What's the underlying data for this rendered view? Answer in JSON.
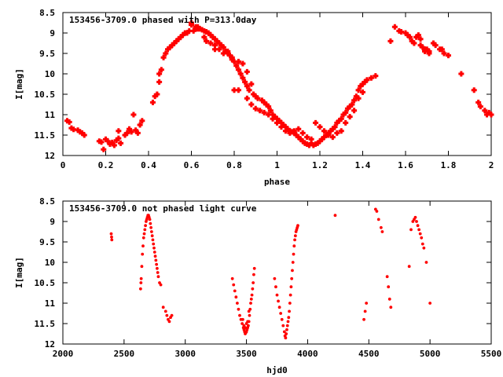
{
  "colors": {
    "points": "#ff0000",
    "axes": "#000000",
    "background": "#ffffff"
  },
  "chart_data": [
    {
      "type": "scatter",
      "title": "153456-3709.0 phased with P=313.0day",
      "xlabel": "phase",
      "ylabel": "I[mag]",
      "xlim": [
        0,
        2
      ],
      "ylim": [
        12,
        8.5
      ],
      "y_inverted": true,
      "xticks": [
        "0",
        "0.2",
        "0.4",
        "0.6",
        "0.8",
        "1",
        "1.2",
        "1.4",
        "1.6",
        "1.8",
        "2"
      ],
      "xtick_values": [
        0,
        0.2,
        0.4,
        0.6,
        0.8,
        1,
        1.2,
        1.4,
        1.6,
        1.8,
        2
      ],
      "yticks": [
        "8.5",
        "9",
        "9.5",
        "10",
        "10.5",
        "11",
        "11.5",
        "12"
      ],
      "ytick_values": [
        8.5,
        9,
        9.5,
        10,
        10.5,
        11,
        11.5,
        12
      ],
      "grid": false,
      "legend": "none",
      "marker": "filled-plus",
      "points": [
        [
          0.02,
          11.15
        ],
        [
          0.03,
          11.18
        ],
        [
          0.04,
          11.33
        ],
        [
          0.05,
          11.36
        ],
        [
          0.07,
          11.38
        ],
        [
          0.08,
          11.42
        ],
        [
          0.09,
          11.45
        ],
        [
          0.1,
          11.5
        ],
        [
          0.17,
          11.65
        ],
        [
          0.18,
          11.67
        ],
        [
          0.19,
          11.85
        ],
        [
          0.2,
          11.6
        ],
        [
          0.21,
          11.65
        ],
        [
          0.22,
          11.72
        ],
        [
          0.23,
          11.68
        ],
        [
          0.24,
          11.75
        ],
        [
          0.25,
          11.63
        ],
        [
          0.26,
          11.58
        ],
        [
          0.26,
          11.4
        ],
        [
          0.27,
          11.7
        ],
        [
          0.29,
          11.5
        ],
        [
          0.3,
          11.45
        ],
        [
          0.31,
          11.35
        ],
        [
          0.32,
          11.42
        ],
        [
          0.33,
          11.0
        ],
        [
          0.34,
          11.38
        ],
        [
          0.35,
          11.45
        ],
        [
          0.36,
          11.25
        ],
        [
          0.37,
          11.15
        ],
        [
          0.42,
          10.7
        ],
        [
          0.43,
          10.55
        ],
        [
          0.44,
          10.5
        ],
        [
          0.45,
          10.2
        ],
        [
          0.45,
          10.0
        ],
        [
          0.46,
          9.9
        ],
        [
          0.47,
          9.6
        ],
        [
          0.48,
          9.5
        ],
        [
          0.49,
          9.4
        ],
        [
          0.5,
          9.35
        ],
        [
          0.51,
          9.3
        ],
        [
          0.52,
          9.25
        ],
        [
          0.53,
          9.2
        ],
        [
          0.54,
          9.15
        ],
        [
          0.55,
          9.1
        ],
        [
          0.56,
          9.05
        ],
        [
          0.57,
          9.0
        ],
        [
          0.58,
          9.0
        ],
        [
          0.59,
          8.95
        ],
        [
          0.6,
          8.75
        ],
        [
          0.61,
          8.95
        ],
        [
          0.62,
          8.9
        ],
        [
          0.63,
          8.85
        ],
        [
          0.64,
          8.9
        ],
        [
          0.65,
          8.92
        ],
        [
          0.66,
          8.95
        ],
        [
          0.67,
          8.97
        ],
        [
          0.68,
          9.0
        ],
        [
          0.69,
          9.05
        ],
        [
          0.7,
          9.1
        ],
        [
          0.71,
          9.15
        ],
        [
          0.71,
          9.4
        ],
        [
          0.72,
          9.2
        ],
        [
          0.73,
          9.25
        ],
        [
          0.74,
          9.3
        ],
        [
          0.75,
          9.35
        ],
        [
          0.76,
          9.45
        ],
        [
          0.77,
          9.5
        ],
        [
          0.78,
          9.55
        ],
        [
          0.79,
          9.65
        ],
        [
          0.8,
          9.7
        ],
        [
          0.81,
          9.8
        ],
        [
          0.82,
          9.9
        ],
        [
          0.83,
          10.0
        ],
        [
          0.84,
          10.1
        ],
        [
          0.85,
          10.2
        ],
        [
          0.86,
          10.3
        ],
        [
          0.87,
          10.4
        ],
        [
          0.89,
          10.5
        ],
        [
          0.9,
          10.55
        ],
        [
          0.91,
          10.6
        ],
        [
          0.93,
          10.65
        ],
        [
          0.94,
          10.7
        ],
        [
          0.95,
          10.75
        ],
        [
          0.96,
          10.8
        ],
        [
          0.97,
          10.9
        ],
        [
          0.98,
          11.0
        ],
        [
          0.99,
          11.05
        ],
        [
          1.0,
          11.1
        ],
        [
          1.01,
          11.15
        ],
        [
          1.02,
          11.2
        ],
        [
          1.03,
          11.25
        ],
        [
          1.04,
          11.3
        ],
        [
          1.05,
          11.35
        ],
        [
          1.06,
          11.4
        ],
        [
          1.07,
          11.42
        ],
        [
          1.08,
          11.45
        ],
        [
          1.09,
          11.5
        ],
        [
          1.1,
          11.55
        ],
        [
          1.11,
          11.6
        ],
        [
          1.12,
          11.65
        ],
        [
          1.13,
          11.7
        ],
        [
          1.14,
          11.72
        ],
        [
          1.15,
          11.75
        ],
        [
          1.16,
          11.7
        ],
        [
          1.17,
          11.75
        ],
        [
          1.18,
          11.72
        ],
        [
          1.19,
          11.7
        ],
        [
          1.2,
          11.65
        ],
        [
          1.21,
          11.6
        ],
        [
          1.22,
          11.55
        ],
        [
          1.23,
          11.5
        ],
        [
          1.24,
          11.45
        ],
        [
          1.25,
          11.4
        ],
        [
          1.26,
          11.35
        ],
        [
          1.27,
          11.3
        ],
        [
          1.28,
          11.2
        ],
        [
          1.29,
          11.15
        ],
        [
          1.3,
          11.1
        ],
        [
          1.31,
          11.0
        ],
        [
          1.32,
          10.95
        ],
        [
          1.33,
          10.85
        ],
        [
          1.34,
          10.8
        ],
        [
          1.35,
          10.75
        ],
        [
          1.36,
          10.65
        ],
        [
          1.37,
          10.55
        ],
        [
          1.38,
          10.4
        ],
        [
          1.39,
          10.3
        ],
        [
          1.4,
          10.25
        ],
        [
          1.41,
          10.2
        ],
        [
          1.42,
          10.15
        ],
        [
          1.44,
          10.1
        ],
        [
          1.46,
          10.05
        ],
        [
          0.6,
          8.8
        ],
        [
          0.62,
          8.85
        ],
        [
          0.63,
          8.9
        ],
        [
          0.66,
          9.1
        ],
        [
          0.67,
          9.2
        ],
        [
          0.69,
          9.25
        ],
        [
          0.71,
          9.3
        ],
        [
          0.73,
          9.4
        ],
        [
          0.75,
          9.5
        ],
        [
          0.77,
          9.45
        ],
        [
          0.79,
          9.6
        ],
        [
          0.82,
          9.7
        ],
        [
          0.84,
          9.75
        ],
        [
          0.86,
          9.95
        ],
        [
          0.88,
          10.25
        ],
        [
          0.8,
          10.4
        ],
        [
          0.82,
          10.4
        ],
        [
          0.86,
          10.6
        ],
        [
          0.88,
          10.75
        ],
        [
          0.9,
          10.85
        ],
        [
          0.92,
          10.9
        ],
        [
          0.94,
          10.95
        ],
        [
          0.96,
          11.0
        ],
        [
          0.98,
          11.1
        ],
        [
          1.0,
          11.2
        ],
        [
          1.02,
          11.3
        ],
        [
          1.04,
          11.4
        ],
        [
          1.06,
          11.45
        ],
        [
          1.08,
          11.4
        ],
        [
          1.1,
          11.35
        ],
        [
          1.12,
          11.45
        ],
        [
          1.14,
          11.55
        ],
        [
          1.16,
          11.6
        ],
        [
          1.18,
          11.2
        ],
        [
          1.2,
          11.3
        ],
        [
          1.22,
          11.4
        ],
        [
          1.24,
          11.5
        ],
        [
          1.26,
          11.55
        ],
        [
          1.28,
          11.45
        ],
        [
          1.3,
          11.4
        ],
        [
          1.32,
          11.2
        ],
        [
          1.34,
          11.05
        ],
        [
          1.36,
          10.9
        ],
        [
          1.38,
          10.6
        ],
        [
          1.4,
          10.45
        ],
        [
          1.53,
          9.2
        ],
        [
          1.55,
          8.85
        ],
        [
          1.57,
          8.95
        ],
        [
          1.58,
          8.97
        ],
        [
          1.6,
          9.0
        ],
        [
          1.61,
          9.05
        ],
        [
          1.62,
          9.1
        ],
        [
          1.63,
          9.2
        ],
        [
          1.64,
          9.25
        ],
        [
          1.66,
          9.05
        ],
        [
          1.67,
          9.15
        ],
        [
          1.68,
          9.35
        ],
        [
          1.69,
          9.4
        ],
        [
          1.7,
          9.4
        ],
        [
          1.71,
          9.45
        ],
        [
          1.73,
          9.25
        ],
        [
          1.74,
          9.3
        ],
        [
          1.76,
          9.4
        ],
        [
          1.78,
          9.5
        ],
        [
          1.8,
          9.55
        ],
        [
          1.86,
          10.0
        ],
        [
          1.92,
          10.4
        ],
        [
          1.94,
          10.7
        ],
        [
          1.95,
          10.8
        ],
        [
          1.97,
          10.9
        ],
        [
          1.98,
          11.0
        ],
        [
          1.99,
          10.95
        ],
        [
          2.0,
          11.0
        ],
        [
          1.65,
          9.1
        ],
        [
          1.67,
          9.3
        ],
        [
          1.69,
          9.45
        ],
        [
          1.71,
          9.5
        ],
        [
          1.77,
          9.4
        ]
      ]
    },
    {
      "type": "scatter",
      "title": "153456-3709.0 not phased light curve",
      "xlabel": "hjd0",
      "ylabel": "I[mag]",
      "xlim": [
        2000,
        5500
      ],
      "ylim": [
        12,
        8.5
      ],
      "y_inverted": true,
      "xticks": [
        "2000",
        "2500",
        "3000",
        "3500",
        "4000",
        "4500",
        "5000",
        "5500"
      ],
      "xtick_values": [
        2000,
        2500,
        3000,
        3500,
        4000,
        4500,
        5000,
        5500
      ],
      "yticks": [
        "8.5",
        "9",
        "9.5",
        "10",
        "10.5",
        "11",
        "11.5",
        "12"
      ],
      "ytick_values": [
        8.5,
        9,
        9.5,
        10,
        10.5,
        11,
        11.5,
        12
      ],
      "grid": false,
      "legend": "none",
      "marker": "dot",
      "points": [
        [
          2395,
          9.3
        ],
        [
          2398,
          9.38
        ],
        [
          2400,
          9.45
        ],
        [
          2635,
          10.65
        ],
        [
          2638,
          10.5
        ],
        [
          2640,
          10.4
        ],
        [
          2645,
          10.1
        ],
        [
          2650,
          9.8
        ],
        [
          2655,
          9.6
        ],
        [
          2660,
          9.4
        ],
        [
          2665,
          9.3
        ],
        [
          2670,
          9.2
        ],
        [
          2675,
          9.1
        ],
        [
          2680,
          9.0
        ],
        [
          2685,
          8.95
        ],
        [
          2690,
          8.9
        ],
        [
          2695,
          8.85
        ],
        [
          2700,
          8.85
        ],
        [
          2705,
          8.9
        ],
        [
          2710,
          8.95
        ],
        [
          2715,
          9.05
        ],
        [
          2720,
          9.15
        ],
        [
          2725,
          9.25
        ],
        [
          2730,
          9.35
        ],
        [
          2735,
          9.45
        ],
        [
          2740,
          9.55
        ],
        [
          2745,
          9.65
        ],
        [
          2750,
          9.75
        ],
        [
          2755,
          9.85
        ],
        [
          2760,
          9.95
        ],
        [
          2765,
          10.05
        ],
        [
          2770,
          10.15
        ],
        [
          2775,
          10.25
        ],
        [
          2780,
          10.35
        ],
        [
          2790,
          10.5
        ],
        [
          2800,
          10.55
        ],
        [
          2820,
          11.1
        ],
        [
          2840,
          11.2
        ],
        [
          2850,
          11.3
        ],
        [
          2860,
          11.4
        ],
        [
          2870,
          11.45
        ],
        [
          2880,
          11.35
        ],
        [
          2890,
          11.3
        ],
        [
          3385,
          10.4
        ],
        [
          3395,
          10.55
        ],
        [
          3405,
          10.7
        ],
        [
          3415,
          10.85
        ],
        [
          3425,
          11.0
        ],
        [
          3435,
          11.15
        ],
        [
          3445,
          11.3
        ],
        [
          3455,
          11.4
        ],
        [
          3465,
          11.5
        ],
        [
          3475,
          11.6
        ],
        [
          3480,
          11.65
        ],
        [
          3485,
          11.7
        ],
        [
          3490,
          11.75
        ],
        [
          3495,
          11.72
        ],
        [
          3500,
          11.7
        ],
        [
          3505,
          11.65
        ],
        [
          3510,
          11.6
        ],
        [
          3515,
          11.55
        ],
        [
          3520,
          11.45
        ],
        [
          3525,
          11.3
        ],
        [
          3530,
          11.15
        ],
        [
          3535,
          11.0
        ],
        [
          3540,
          10.9
        ],
        [
          3545,
          10.8
        ],
        [
          3550,
          10.65
        ],
        [
          3555,
          10.5
        ],
        [
          3560,
          10.3
        ],
        [
          3565,
          10.15
        ],
        [
          3470,
          11.4
        ],
        [
          3480,
          11.55
        ],
        [
          3490,
          11.6
        ],
        [
          3500,
          11.5
        ],
        [
          3510,
          11.45
        ],
        [
          3520,
          11.2
        ],
        [
          3730,
          10.4
        ],
        [
          3740,
          10.6
        ],
        [
          3750,
          10.8
        ],
        [
          3760,
          10.95
        ],
        [
          3770,
          11.1
        ],
        [
          3780,
          11.25
        ],
        [
          3790,
          11.4
        ],
        [
          3800,
          11.55
        ],
        [
          3810,
          11.7
        ],
        [
          3815,
          11.8
        ],
        [
          3820,
          11.85
        ],
        [
          3825,
          11.75
        ],
        [
          3830,
          11.65
        ],
        [
          3835,
          11.55
        ],
        [
          3840,
          11.45
        ],
        [
          3845,
          11.35
        ],
        [
          3850,
          11.2
        ],
        [
          3855,
          11.0
        ],
        [
          3860,
          10.8
        ],
        [
          3865,
          10.6
        ],
        [
          3870,
          10.4
        ],
        [
          3875,
          10.2
        ],
        [
          3880,
          10.0
        ],
        [
          3885,
          9.8
        ],
        [
          3890,
          9.6
        ],
        [
          3895,
          9.45
        ],
        [
          3900,
          9.35
        ],
        [
          3905,
          9.25
        ],
        [
          3910,
          9.2
        ],
        [
          3915,
          9.15
        ],
        [
          3920,
          9.1
        ],
        [
          4225,
          8.85
        ],
        [
          4460,
          11.4
        ],
        [
          4470,
          11.2
        ],
        [
          4480,
          11.0
        ],
        [
          4555,
          8.7
        ],
        [
          4565,
          8.75
        ],
        [
          4580,
          8.95
        ],
        [
          4600,
          9.15
        ],
        [
          4610,
          9.25
        ],
        [
          4650,
          10.35
        ],
        [
          4660,
          10.6
        ],
        [
          4670,
          10.9
        ],
        [
          4680,
          11.1
        ],
        [
          4830,
          10.1
        ],
        [
          4845,
          9.2
        ],
        [
          4860,
          9.0
        ],
        [
          4870,
          8.95
        ],
        [
          4880,
          8.9
        ],
        [
          4890,
          9.0
        ],
        [
          4900,
          9.1
        ],
        [
          4910,
          9.2
        ],
        [
          4920,
          9.3
        ],
        [
          4930,
          9.4
        ],
        [
          4940,
          9.55
        ],
        [
          4950,
          9.65
        ],
        [
          4970,
          10.0
        ],
        [
          5000,
          11.0
        ]
      ]
    }
  ]
}
